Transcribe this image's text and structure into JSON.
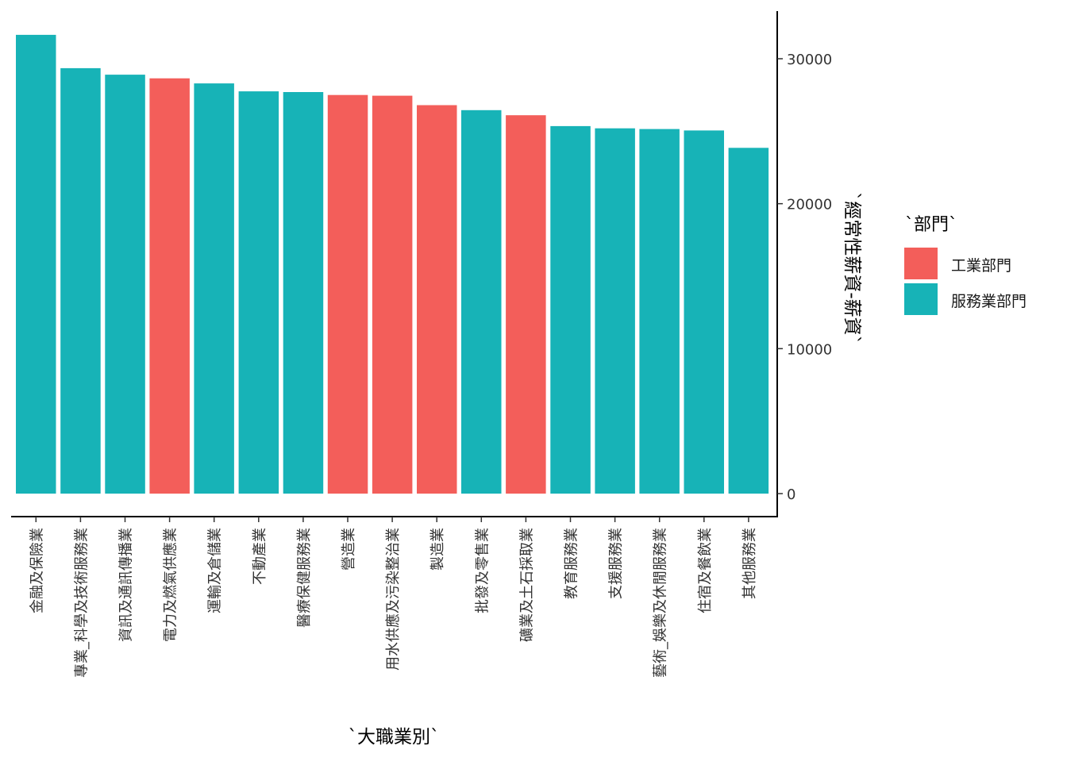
{
  "chart_data": {
    "type": "bar",
    "xlabel": "`大職業別`",
    "ylabel": "`經常性薪資-薪資`",
    "legend_title": "`部門`",
    "legend_position": "right",
    "grid": false,
    "y_axis_side": "right",
    "ylim": [
      0,
      32500
    ],
    "yticks": [
      0,
      10000,
      20000,
      30000
    ],
    "categories": [
      "金融及保險業",
      "專業_科學及技術服務業",
      "資訊及通訊傳播業",
      "電力及燃氣供應業",
      "運輸及倉儲業",
      "不動產業",
      "醫療保健服務業",
      "營造業",
      "用水供應及污染整治業",
      "製造業",
      "批發及零售業",
      "礦業及土石採取業",
      "教育服務業",
      "支援服務業",
      "藝術_娛樂及休閒服務業",
      "住宿及餐飲業",
      "其他服務業"
    ],
    "values": [
      31650,
      29350,
      28900,
      28650,
      28300,
      27750,
      27700,
      27500,
      27450,
      26800,
      26450,
      26100,
      25350,
      25200,
      25150,
      25050,
      23850
    ],
    "groups": [
      "服務業部門",
      "服務業部門",
      "服務業部門",
      "工業部門",
      "服務業部門",
      "服務業部門",
      "服務業部門",
      "工業部門",
      "工業部門",
      "工業部門",
      "服務業部門",
      "工業部門",
      "服務業部門",
      "服務業部門",
      "服務業部門",
      "服務業部門",
      "服務業部門"
    ],
    "legend": [
      {
        "name": "工業部門",
        "color": "#F35E5A"
      },
      {
        "name": "服務業部門",
        "color": "#17B3B7"
      }
    ]
  }
}
